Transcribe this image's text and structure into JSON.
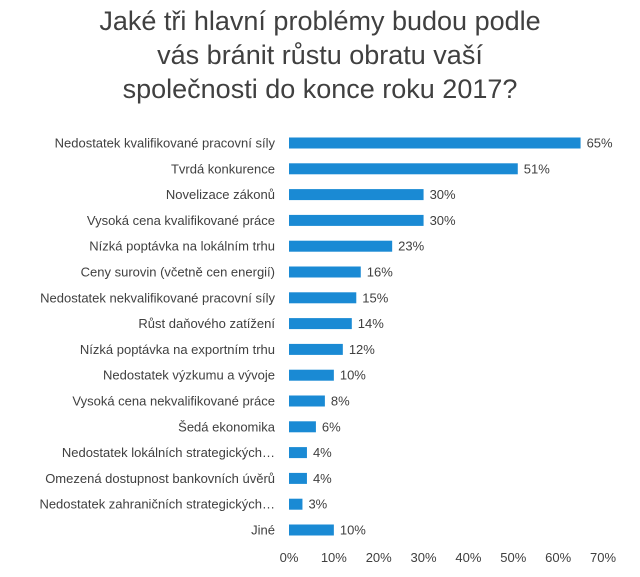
{
  "chart_data": {
    "type": "bar",
    "orientation": "horizontal",
    "title": "Jaké tři hlavní problémy budou podle\nvás bránit růstu obratu vaší\nspolečnosti do konce roku 2017?",
    "categories": [
      "Nedostatek kvalifikované pracovní síly",
      "Tvrdá konkurence",
      "Novelizace zákonů",
      "Vysoká cena kvalifikované práce",
      "Nízká poptávka na lokálním trhu",
      "Ceny surovin (včetně cen energií)",
      "Nedostatek nekvalifikované pracovní síly",
      "Růst daňového zatížení",
      "Nízká poptávka na exportním trhu",
      "Nedostatek výzkumu a vývoje",
      "Vysoká cena nekvalifikované práce",
      "Šedá ekonomika",
      "Nedostatek lokálních strategických…",
      "Omezená dostupnost bankovních úvěrů",
      "Nedostatek zahraničních strategických…",
      "Jiné"
    ],
    "values": [
      65,
      51,
      30,
      30,
      23,
      16,
      15,
      14,
      12,
      10,
      8,
      6,
      4,
      4,
      3,
      10
    ],
    "value_labels": [
      "65%",
      "51%",
      "30%",
      "30%",
      "23%",
      "16%",
      "15%",
      "14%",
      "12%",
      "10%",
      "8%",
      "6%",
      "4%",
      "4%",
      "3%",
      "10%"
    ],
    "xlim": [
      0,
      70
    ],
    "x_ticks": [
      "0%",
      "10%",
      "20%",
      "30%",
      "40%",
      "50%",
      "60%",
      "70%"
    ],
    "grid": false,
    "legend": "none",
    "bar_color": "#1a8ad4"
  }
}
